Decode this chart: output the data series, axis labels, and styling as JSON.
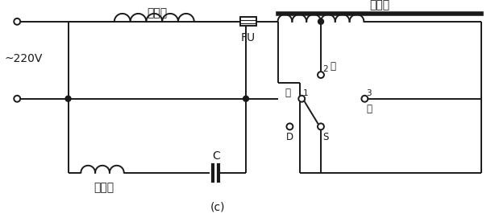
{
  "title": "(c)",
  "voltage_label": "~220V",
  "main_coil_label": "主绕组",
  "aux_coil_label": "副绕组",
  "capacitor_label": "C",
  "fuse_label": "FU",
  "reactor_label": "电抗器",
  "high_label": "高",
  "mid_label": "中",
  "low_label": "低",
  "d_label": "D",
  "s_label": "S",
  "pos1_label": "1",
  "pos2_label": "2",
  "pos3_label": "3",
  "bg_color": "#ffffff",
  "line_color": "#1a1a1a",
  "fontsize": 10,
  "small_fontsize": 8.5
}
